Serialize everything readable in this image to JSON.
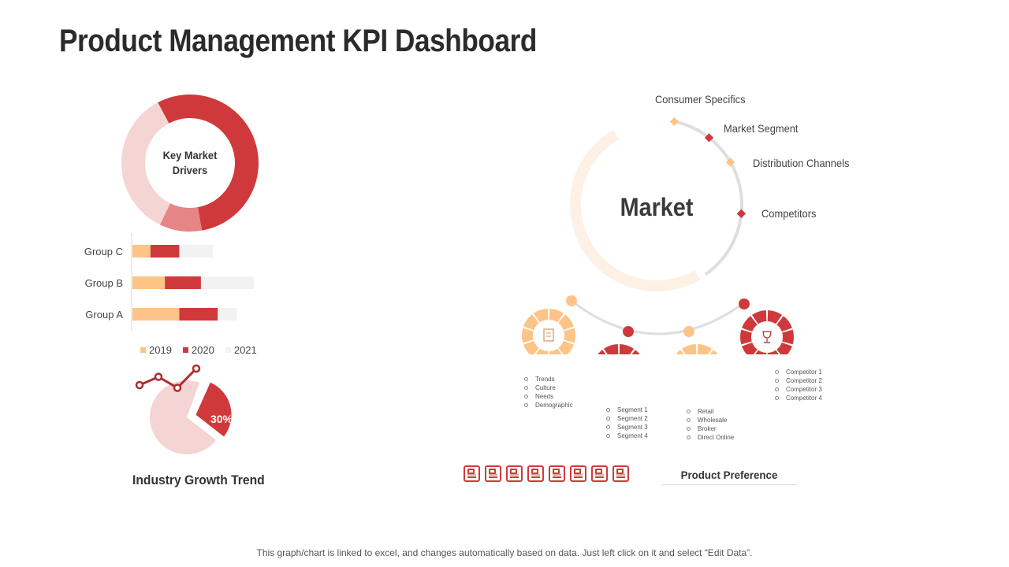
{
  "page": {
    "title": "Product Management KPI Dashboard"
  },
  "donut": {
    "label_line1": "Key Market",
    "label_line2": "Drivers",
    "segments": [
      {
        "value": 0.55,
        "color": "#d0393b"
      },
      {
        "value": 0.1,
        "color": "#e58586"
      },
      {
        "value": 0.35,
        "color": "#f5d4d4"
      }
    ]
  },
  "bar_chart": {
    "chart_data": {
      "type": "bar",
      "orientation": "horizontal",
      "stacked": true,
      "categories": [
        "Group C",
        "Group B",
        "Group A"
      ],
      "series": [
        {
          "name": "2019",
          "values": [
            1.5,
            2.7,
            3.9
          ],
          "color": "#fcc486"
        },
        {
          "name": "2020",
          "values": [
            2.4,
            3.0,
            3.2
          ],
          "color": "#d0393b"
        },
        {
          "name": "2021",
          "values": [
            2.8,
            4.4,
            1.6
          ],
          "color": "#f2f2f2"
        }
      ],
      "legend_position": "bottom",
      "grid": false,
      "xlim": [
        0,
        12
      ]
    }
  },
  "trend": {
    "title": "Industry Growth Trend",
    "percent_label": "30%",
    "percent_value": 30,
    "pie_color": "#f5d4d4",
    "highlight_color": "#d0393b",
    "line_color": "#b02a2e",
    "line_values": [
      2,
      3.5,
      1.5,
      5
    ]
  },
  "market": {
    "center_label": "Market",
    "points": [
      {
        "label": "Consumer Specifics",
        "color": "#fcc486"
      },
      {
        "label": "Market Segment",
        "color": "#d0393b"
      },
      {
        "label": "Distribution Channels",
        "color": "#fcc486"
      },
      {
        "label": "Competitors",
        "color": "#d0393b"
      }
    ],
    "lists": {
      "consumer": [
        "Trends",
        "Culture",
        "Needs",
        "Demographic"
      ],
      "segment": [
        "Segment  1",
        "Segment  2",
        "Segment  3",
        "Segment  4"
      ],
      "distribution": [
        "Retail",
        "Wholesale",
        "Broker",
        "Direct Online"
      ],
      "competitors": [
        "Competitor 1",
        "Competitor 2",
        "Competitor 3",
        "Competitor 4"
      ]
    },
    "circle_icons": [
      "document-icon",
      "chart-board-icon",
      "network-icon",
      "trophy-icon"
    ],
    "circle_colors": [
      "#fcc486",
      "#d0393b",
      "#fcc486",
      "#d0393b"
    ]
  },
  "product_preference": {
    "label": "Product Preference",
    "icon_count": 8,
    "icon_name": "product-box-icon",
    "color": "#d0393b"
  },
  "footer": {
    "text": "This graph/chart is linked to excel, and changes automatically based on data. Just left click on it and select “Edit Data”."
  }
}
